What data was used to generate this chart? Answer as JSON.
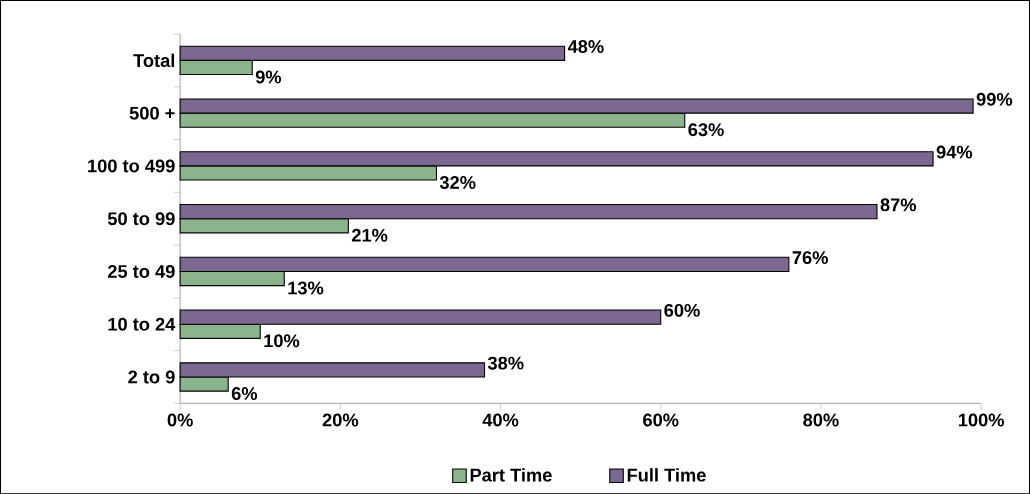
{
  "chart_data": {
    "type": "bar",
    "orientation": "horizontal",
    "categories": [
      "Total",
      "500 +",
      "100 to 499",
      "50 to 99",
      "25 to 49",
      "10 to 24",
      "2 to 9"
    ],
    "series": [
      {
        "name": "Part Time",
        "color": "#8cb48c",
        "values": [
          9,
          63,
          32,
          21,
          13,
          10,
          6
        ],
        "value_labels": [
          "9%",
          "63%",
          "32%",
          "21%",
          "13%",
          "10%",
          "6%"
        ]
      },
      {
        "name": "Full Time",
        "color": "#7b6891",
        "values": [
          48,
          99,
          94,
          87,
          76,
          60,
          38
        ],
        "value_labels": [
          "48%",
          "99%",
          "94%",
          "87%",
          "76%",
          "60%",
          "38%"
        ]
      }
    ],
    "xlim": [
      0,
      100
    ],
    "xticks": [
      {
        "value": 0,
        "label": "0%"
      },
      {
        "value": 20,
        "label": "20%"
      },
      {
        "value": 40,
        "label": "40%"
      },
      {
        "value": 60,
        "label": "60%"
      },
      {
        "value": 80,
        "label": "80%"
      },
      {
        "value": 100,
        "label": "100%"
      }
    ],
    "grid": false,
    "legend": "bottom"
  }
}
